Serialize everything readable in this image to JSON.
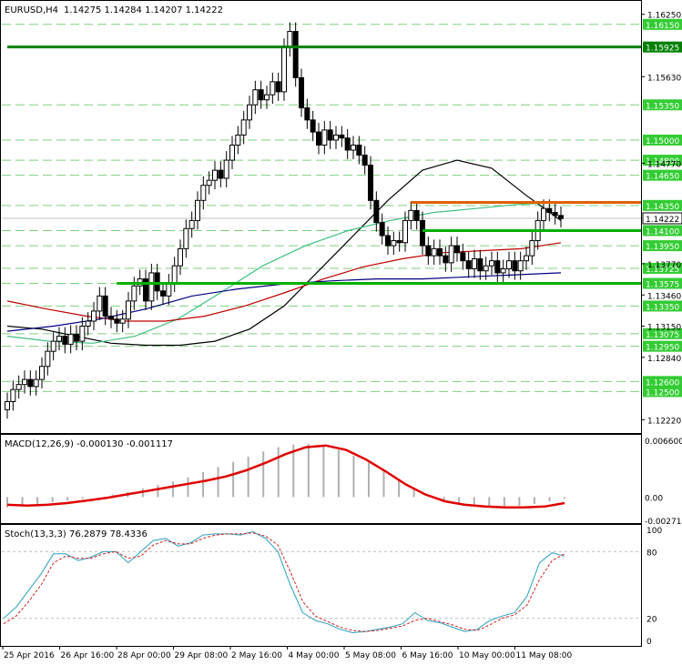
{
  "header": {
    "symbol": "EURUSD,H4",
    "ohlc": "1.14275 1.14284 1.14207 1.14222"
  },
  "chart_data": [
    {
      "type": "candlestick",
      "title": "EURUSD,H4  1.14275 1.14284 1.14207 1.14222",
      "y_ticks": [
        "1.16250",
        "1.15630",
        "1.14770",
        "1.13770",
        "1.13460",
        "1.13150",
        "1.12840",
        "1.12220"
      ],
      "ylim": [
        1.1216,
        1.1632
      ],
      "x_ticks": [
        "25 Apr 2016",
        "26 Apr 16:00",
        "28 Apr 00:00",
        "29 Apr 08:00",
        "2 May 16:00",
        "4 May 00:00",
        "5 May 08:00",
        "6 May 16:00",
        "10 May 00:00",
        "11 May 08:00"
      ],
      "current_price": "1.14222",
      "current_value": 1.14222,
      "level_labels": [
        {
          "text": "1.16150",
          "value": 1.1615
        },
        {
          "text": "1.15925",
          "value": 1.15925,
          "strong": true
        },
        {
          "text": "1.15350",
          "value": 1.1535
        },
        {
          "text": "1.15000",
          "value": 1.15
        },
        {
          "text": "1.14800",
          "value": 1.148
        },
        {
          "text": "1.14650",
          "value": 1.1465
        },
        {
          "text": "1.14350",
          "value": 1.1435
        },
        {
          "text": "1.14100",
          "value": 1.141
        },
        {
          "text": "1.13950",
          "value": 1.1395
        },
        {
          "text": "1.13725",
          "value": 1.13725
        },
        {
          "text": "1.13575",
          "value": 1.13575
        },
        {
          "text": "1.13350",
          "value": 1.1335
        },
        {
          "text": "1.13075",
          "value": 1.13075
        },
        {
          "text": "1.12950",
          "value": 1.1295
        },
        {
          "text": "1.12600",
          "value": 1.126
        },
        {
          "text": "1.12500",
          "value": 1.125
        }
      ],
      "trend_segments": [
        {
          "from_bar": 0,
          "to_bar": 100,
          "value": 1.15925,
          "color": "#008000"
        },
        {
          "from_bar": 19,
          "to_bar": 100,
          "value": 1.13575,
          "color": "#00b000"
        },
        {
          "from_bar": 72,
          "to_bar": 100,
          "value": 1.141,
          "color": "#00b000"
        },
        {
          "from_bar": 70,
          "to_bar": 100,
          "value": 1.1438,
          "color": "#e06000"
        }
      ],
      "close_series": [
        1.124,
        1.1252,
        1.1257,
        1.1262,
        1.1255,
        1.1262,
        1.1275,
        1.129,
        1.13,
        1.1305,
        1.1297,
        1.1307,
        1.13,
        1.1315,
        1.132,
        1.133,
        1.1345,
        1.1325,
        1.1322,
        1.1318,
        1.1322,
        1.134,
        1.1355,
        1.1362,
        1.134,
        1.1368,
        1.135,
        1.1345,
        1.1358,
        1.1375,
        1.1392,
        1.1412,
        1.142,
        1.144,
        1.1455,
        1.146,
        1.147,
        1.1462,
        1.148,
        1.1495,
        1.1505,
        1.152,
        1.1535,
        1.155,
        1.154,
        1.1545,
        1.1558,
        1.1548,
        1.1592,
        1.1608,
        1.1562,
        1.1532,
        1.152,
        1.1508,
        1.1495,
        1.151,
        1.15,
        1.1505,
        1.1502,
        1.149,
        1.1495,
        1.1485,
        1.1475,
        1.144,
        1.1418,
        1.1405,
        1.1395,
        1.14,
        1.1398,
        1.142,
        1.143,
        1.142,
        1.1395,
        1.1385,
        1.1392,
        1.1385,
        1.1378,
        1.1395,
        1.1388,
        1.138,
        1.1372,
        1.1382,
        1.137,
        1.1375,
        1.138,
        1.1368,
        1.1372,
        1.138,
        1.137,
        1.138,
        1.1385,
        1.14,
        1.142,
        1.1432,
        1.1428,
        1.1425,
        1.1422
      ],
      "series": [
        {
          "name": "",
          "color": "#000000",
          "values": [
            1.1315,
            1.1312,
            1.1305,
            1.1298,
            1.1296,
            1.1296,
            1.13,
            1.1312,
            1.1335,
            1.137,
            1.1405,
            1.144,
            1.147,
            1.148,
            1.1472,
            1.1445,
            1.142
          ]
        },
        {
          "name": "",
          "color": "#40c080",
          "values": [
            1.1305,
            1.13,
            1.1298,
            1.1305,
            1.1322,
            1.1348,
            1.1375,
            1.1395,
            1.141,
            1.142,
            1.1428,
            1.1432,
            1.1436,
            1.1438
          ]
        },
        {
          "name": "",
          "color": "#c00000",
          "values": [
            1.134,
            1.1332,
            1.1325,
            1.132,
            1.132,
            1.1325,
            1.1335,
            1.1348,
            1.1362,
            1.1374,
            1.1382,
            1.1388,
            1.139,
            1.1392,
            1.1398
          ]
        },
        {
          "name": "",
          "color": "#000080",
          "values": [
            1.131,
            1.1315,
            1.1322,
            1.1332,
            1.1345,
            1.1352,
            1.1357,
            1.136,
            1.1362,
            1.1362,
            1.1364,
            1.1366,
            1.1368
          ]
        }
      ]
    },
    {
      "type": "bar",
      "title": "MACD(12,26,9) -0.000130 -0.001117",
      "y_ticks": [
        "0.006600",
        "0.00",
        "-0.00271"
      ],
      "ylim": [
        -0.00271,
        0.0066
      ],
      "histogram": [
        -0.0012,
        -0.001,
        -0.0008,
        -0.0006,
        -0.0004,
        -0.0002,
        0.0,
        0.0003,
        0.0006,
        0.001,
        0.0014,
        0.0018,
        0.0023,
        0.0029,
        0.0035,
        0.0041,
        0.0047,
        0.0053,
        0.0058,
        0.0061,
        0.0062,
        0.006,
        0.0055,
        0.0048,
        0.004,
        0.003,
        0.002,
        0.001,
        0.0002,
        -0.0004,
        -0.0008,
        -0.001,
        -0.0011,
        -0.0011,
        -0.001,
        -0.0008,
        -0.0005,
        -0.0002
      ],
      "signal": [
        -0.0009,
        -0.001,
        -0.0009,
        -0.0007,
        -0.0004,
        -0.0001,
        0.0003,
        0.0007,
        0.0011,
        0.0015,
        0.0019,
        0.0024,
        0.0031,
        0.004,
        0.005,
        0.0058,
        0.006,
        0.0055,
        0.0044,
        0.003,
        0.0015,
        0.0003,
        -0.0005,
        -0.0009,
        -0.0011,
        -0.0012,
        -0.0012,
        -0.0011,
        -0.0007
      ],
      "signal_color": "#e00000"
    },
    {
      "type": "line",
      "title": "Stoch(13,3,3) 76.2879 78.4336",
      "y_ticks": [
        "100",
        "80",
        "20",
        "0"
      ],
      "ylim": [
        0,
        100
      ],
      "series": [
        {
          "name": "",
          "color": "#2aa0c0",
          "values": [
            20,
            30,
            45,
            60,
            78,
            78,
            72,
            75,
            80,
            80,
            70,
            80,
            90,
            92,
            85,
            88,
            95,
            96,
            96,
            95,
            98,
            92,
            80,
            50,
            25,
            18,
            15,
            10,
            7,
            8,
            10,
            12,
            15,
            25,
            18,
            16,
            12,
            8,
            10,
            18,
            22,
            25,
            40,
            70,
            79,
            76
          ]
        },
        {
          "name": "",
          "color": "#d02020",
          "values": [
            15,
            22,
            35,
            50,
            70,
            76,
            74,
            74,
            78,
            80,
            74,
            76,
            86,
            90,
            87,
            87,
            92,
            95,
            96,
            96,
            97,
            94,
            86,
            62,
            35,
            22,
            17,
            12,
            9,
            8,
            9,
            11,
            13,
            18,
            20,
            17,
            14,
            10,
            9,
            14,
            20,
            23,
            32,
            55,
            72,
            78
          ]
        }
      ]
    }
  ]
}
